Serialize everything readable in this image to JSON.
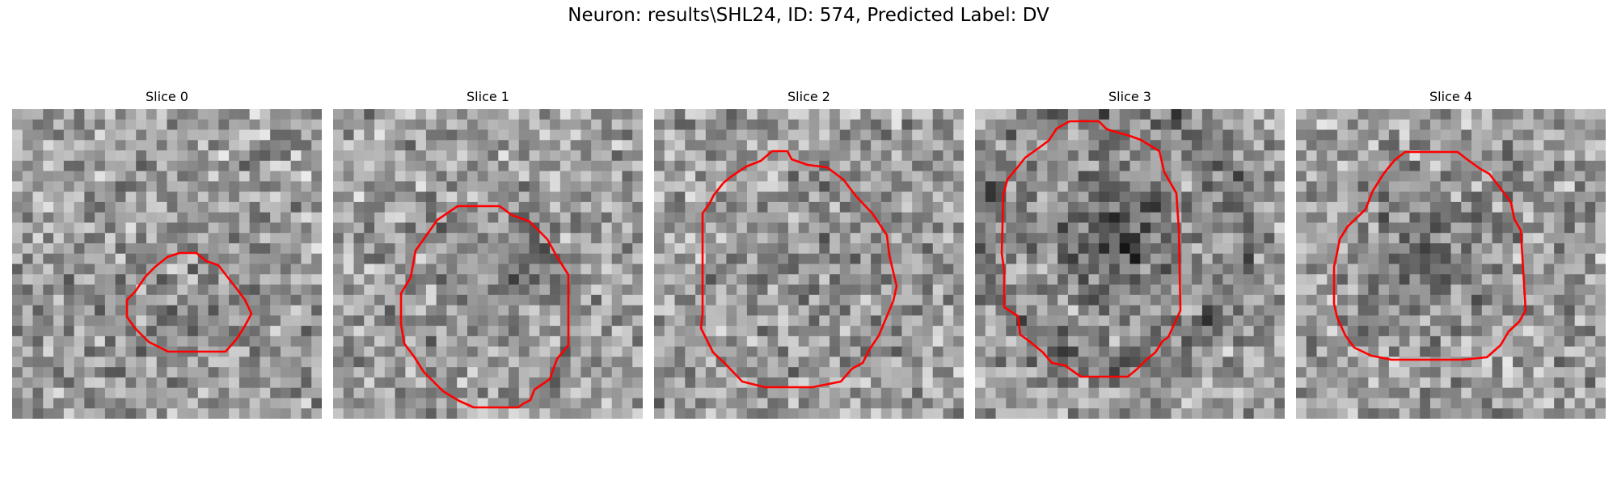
{
  "title": "Neuron: results\\SHL24, ID: 574, Predicted Label: DV",
  "contour_color": "#ff0000",
  "image_colormap": "gray",
  "grid_size": 30,
  "panels": [
    {
      "title": "Slice 0",
      "image": "grayscale-image",
      "overlay": "red-contour",
      "dark_center": [
        0.5,
        0.66
      ],
      "dark_strength": 0.08
    },
    {
      "title": "Slice 1",
      "image": "grayscale-image",
      "overlay": "red-contour",
      "dark_center": [
        0.55,
        0.55
      ],
      "dark_strength": 0.14
    },
    {
      "title": "Slice 2",
      "image": "grayscale-image",
      "overlay": "red-contour",
      "dark_center": [
        0.55,
        0.52
      ],
      "dark_strength": 0.1
    },
    {
      "title": "Slice 3",
      "image": "grayscale-image",
      "overlay": "red-contour",
      "dark_center": [
        0.45,
        0.4
      ],
      "dark_strength": 0.32
    },
    {
      "title": "Slice 4",
      "image": "grayscale-image",
      "overlay": "red-contour",
      "dark_center": [
        0.45,
        0.48
      ],
      "dark_strength": 0.18
    }
  ]
}
